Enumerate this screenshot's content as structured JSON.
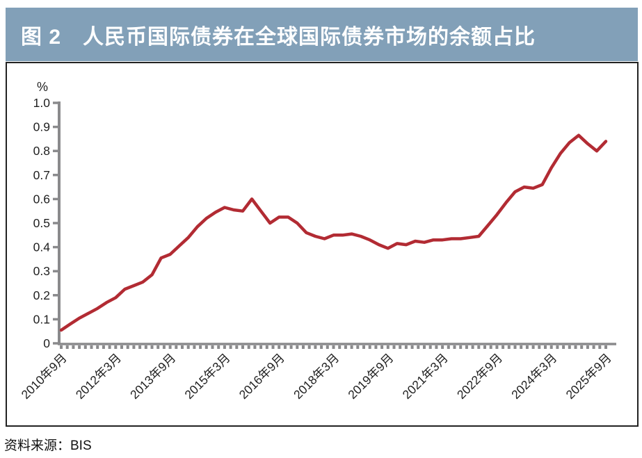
{
  "header": {
    "title": "图 2　人民币国际债券在全球国际债券市场的余额占比"
  },
  "source_note": "资料来源：BIS",
  "colors": {
    "title_bar_bg": "#82A0B8",
    "title_text": "#FFFFFF",
    "line": "#B22B33",
    "axis": "#8A8A8C",
    "tick_text": "#1F1F1F",
    "box_border": "#222222"
  },
  "chart_data": {
    "type": "line",
    "title": "图 2　人民币国际债券在全球国际债券市场的余额占比",
    "ylabel": "%",
    "ylim": [
      0,
      1.0
    ],
    "grid": false,
    "legend": "none",
    "y_ticks": [
      "0",
      "0.1",
      "0.2",
      "0.3",
      "0.4",
      "0.5",
      "0.6",
      "0.7",
      "0.8",
      "0.9",
      "1.0"
    ],
    "x_tick_labels": [
      "2010年9月",
      "2012年3月",
      "2013年9月",
      "2015年3月",
      "2016年9月",
      "2018年3月",
      "2019年9月",
      "2021年3月",
      "2022年9月",
      "2024年3月",
      "2025年9月"
    ],
    "x_label_every_n_points": 6,
    "frequency": "quarterly",
    "x_range_note": "quarterly observations from 2010年9月 to 2025年9月",
    "values": [
      0.055,
      0.08,
      0.105,
      0.125,
      0.145,
      0.17,
      0.19,
      0.225,
      0.24,
      0.255,
      0.285,
      0.355,
      0.37,
      0.405,
      0.44,
      0.485,
      0.52,
      0.545,
      0.565,
      0.555,
      0.55,
      0.6,
      0.55,
      0.5,
      0.525,
      0.525,
      0.5,
      0.46,
      0.445,
      0.435,
      0.45,
      0.45,
      0.455,
      0.445,
      0.43,
      0.41,
      0.395,
      0.415,
      0.41,
      0.425,
      0.42,
      0.43,
      0.43,
      0.435,
      0.435,
      0.44,
      0.445,
      0.49,
      0.535,
      0.585,
      0.63,
      0.65,
      0.645,
      0.66,
      0.73,
      0.79,
      0.835,
      0.865,
      0.83,
      0.8,
      0.84
    ]
  }
}
